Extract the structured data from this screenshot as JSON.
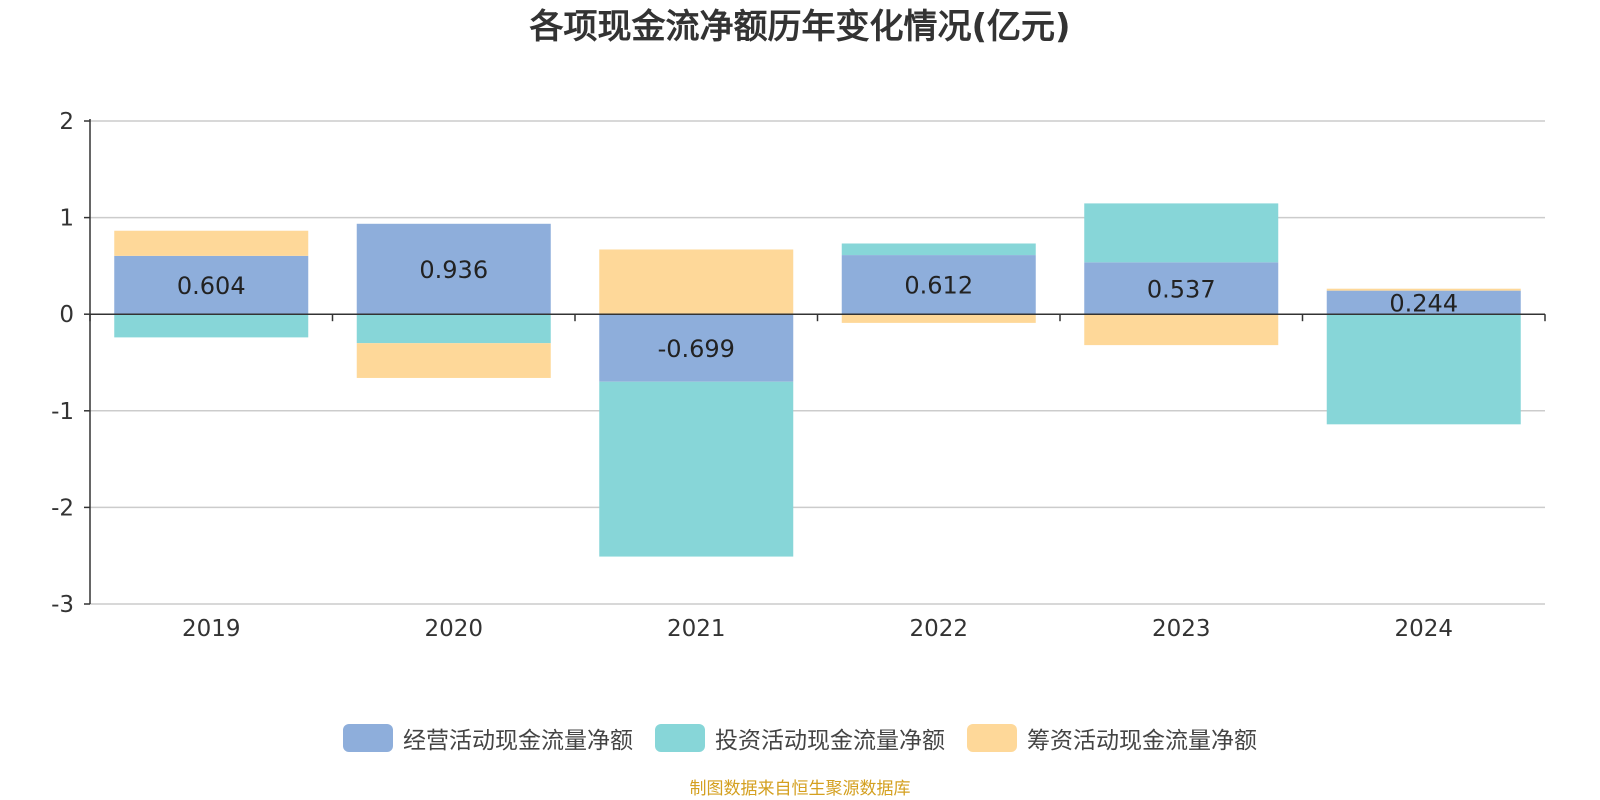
{
  "chart_data": {
    "type": "bar",
    "stacked": true,
    "title": "各项现金流净额历年变化情况(亿元)",
    "categories": [
      "2019",
      "2020",
      "2021",
      "2022",
      "2023",
      "2024"
    ],
    "series": [
      {
        "name": "经营活动现金流量净额",
        "color": "#8eaedb",
        "values": [
          0.604,
          0.936,
          -0.699,
          0.612,
          0.537,
          0.244
        ],
        "labels": [
          "0.604",
          "0.936",
          "-0.699",
          "0.612",
          "0.537",
          "0.244"
        ]
      },
      {
        "name": "投资活动现金流量净额",
        "color": "#87d6d8",
        "values": [
          -0.24,
          -0.3,
          -1.81,
          0.12,
          0.61,
          -1.14
        ]
      },
      {
        "name": "筹资活动现金流量净额",
        "color": "#fed899",
        "values": [
          0.26,
          -0.36,
          0.67,
          -0.09,
          -0.32,
          0.02
        ]
      }
    ],
    "ylim": [
      -3,
      2
    ],
    "yticks": [
      "2",
      "1",
      "0",
      "-1",
      "-2",
      "-3"
    ],
    "grid": true,
    "legend_position": "bottom"
  },
  "source": "制图数据来自恒生聚源数据库",
  "source_color": "#d4a020"
}
